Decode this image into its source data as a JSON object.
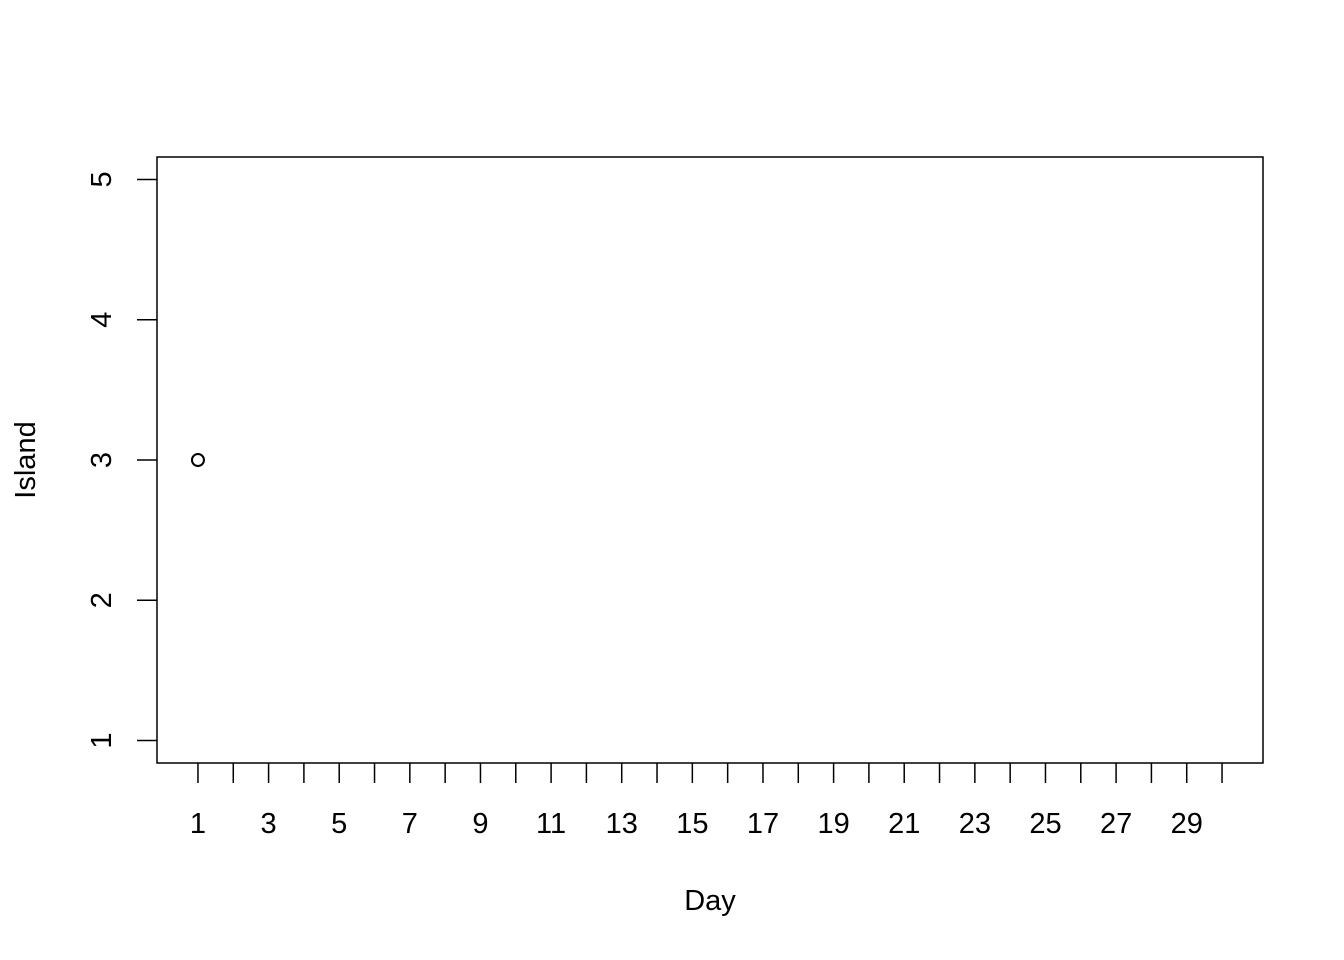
{
  "chart_data": {
    "type": "scatter",
    "title": "",
    "xlabel": "Day",
    "ylabel": "Island",
    "x": [
      1
    ],
    "y": [
      3
    ],
    "xlim": [
      -0.16,
      31.16
    ],
    "ylim": [
      0.84,
      5.16
    ],
    "x_ticks": [
      1,
      2,
      3,
      4,
      5,
      6,
      7,
      8,
      9,
      10,
      11,
      12,
      13,
      14,
      15,
      16,
      17,
      18,
      19,
      20,
      21,
      22,
      23,
      24,
      25,
      26,
      27,
      28,
      29,
      30
    ],
    "x_tick_labels": [
      "1",
      "",
      "3",
      "",
      "5",
      "",
      "7",
      "",
      "9",
      "",
      "11",
      "",
      "13",
      "",
      "15",
      "",
      "17",
      "",
      "19",
      "",
      "21",
      "",
      "23",
      "",
      "25",
      "",
      "27",
      "",
      "29",
      ""
    ],
    "y_ticks": [
      1,
      2,
      3,
      4,
      5
    ],
    "y_tick_labels": [
      "1",
      "2",
      "3",
      "4",
      "5"
    ],
    "marker": "open-circle",
    "grid": false,
    "legend": "none",
    "color": "#000000"
  }
}
